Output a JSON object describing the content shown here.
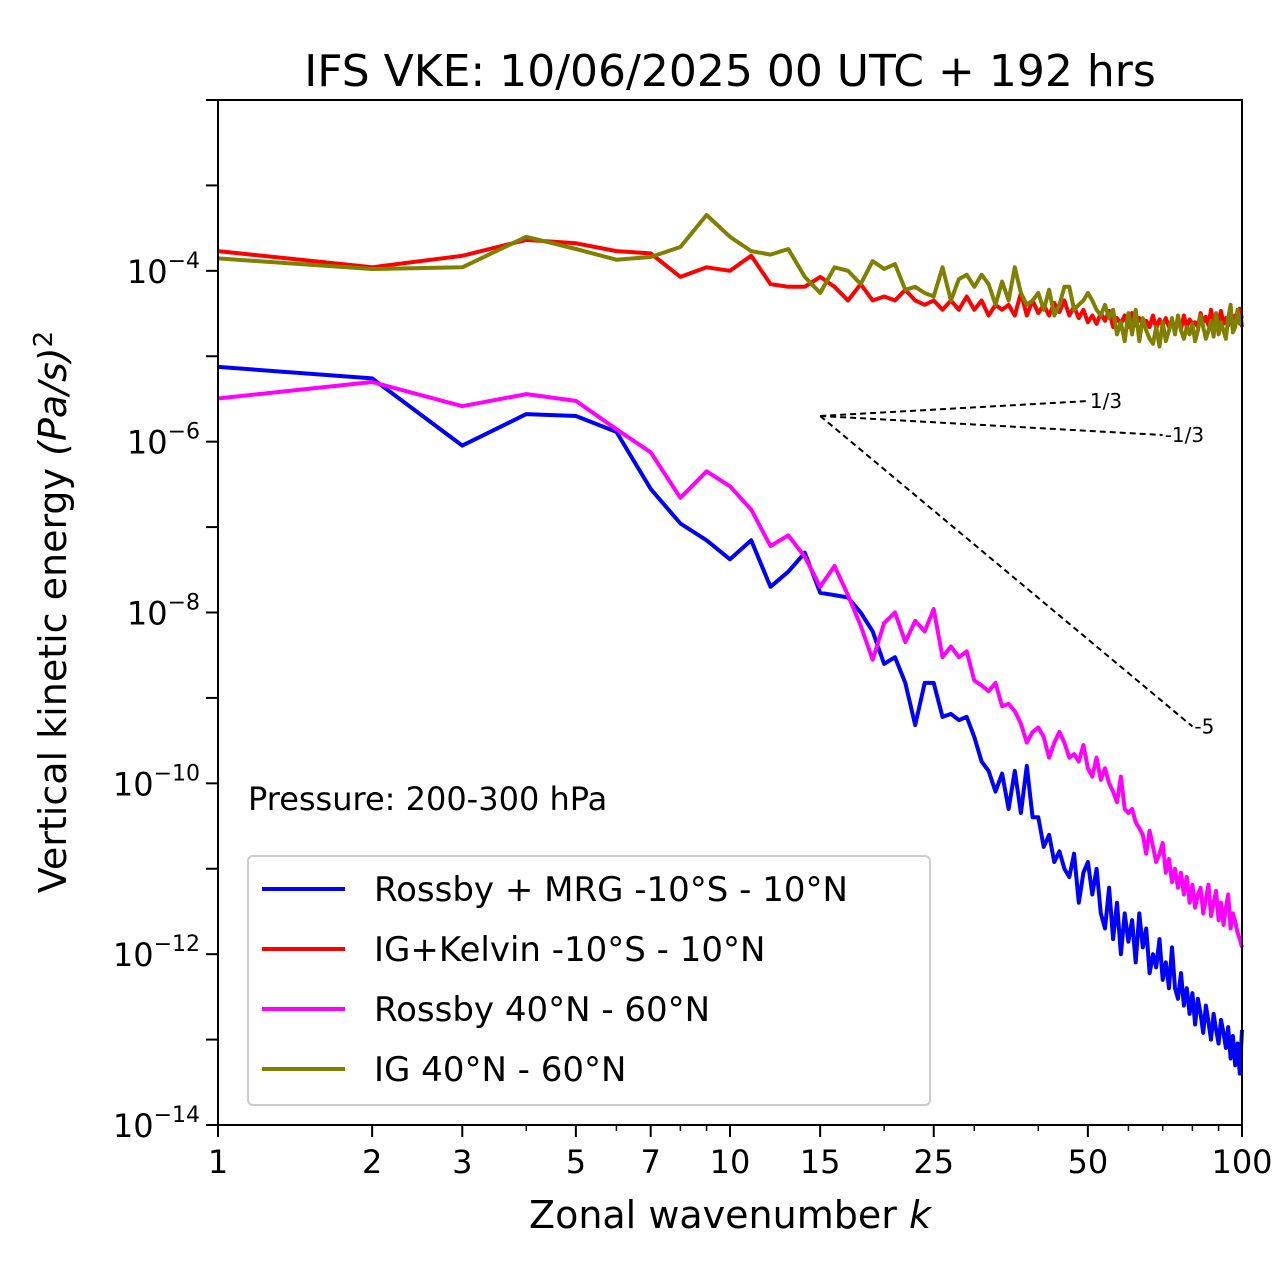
{
  "chart_data": {
    "type": "line",
    "title": "IFS VKE: 10/06/2025 00 UTC + 192 hrs",
    "xlabel": "Zonal wavenumber",
    "xlabel_var": "k",
    "ylabel": "Vertical kinetic energy",
    "ylabel_unit": "(Pa/s)",
    "ylabel_exp": "2",
    "xscale": "log",
    "yscale": "log",
    "xlim": [
      1,
      100
    ],
    "ylim": [
      1e-14,
      0.01
    ],
    "x_ticks": [
      1,
      2,
      3,
      5,
      7,
      10,
      15,
      25,
      50,
      100
    ],
    "y_ticks": [
      {
        "value": 0.0001,
        "base": "10",
        "exp": "−4"
      },
      {
        "value": 1e-06,
        "base": "10",
        "exp": "−6"
      },
      {
        "value": 1e-08,
        "base": "10",
        "exp": "−8"
      },
      {
        "value": 1e-10,
        "base": "10",
        "exp": "−10"
      },
      {
        "value": 1e-12,
        "base": "10",
        "exp": "−12"
      },
      {
        "value": 1e-14,
        "base": "10",
        "exp": "−14"
      }
    ],
    "annotation": "Pressure: 200-300 hPa",
    "legend_position": "lower-left",
    "reference_slopes": [
      {
        "label": "1/3",
        "slope": 0.3333,
        "x0": 15,
        "y0": 2e-06,
        "x1": 50
      },
      {
        "label": "-1/3",
        "slope": -0.3333,
        "x0": 15,
        "y0": 2e-06,
        "x1": 70
      },
      {
        "label": "-5",
        "slope": -5,
        "x0": 15,
        "y0": 2e-06,
        "x1": 80
      }
    ],
    "series": [
      {
        "name": "Rossby + MRG -10°S - 10°N",
        "color": "#0000ff",
        "x": [
          1,
          2,
          3,
          4,
          5,
          6,
          7,
          8,
          9,
          10,
          11,
          12,
          13,
          14,
          15,
          16,
          17,
          18,
          19,
          20,
          21,
          22,
          23,
          24,
          25,
          26,
          27,
          28,
          29,
          30,
          31,
          32,
          33,
          34,
          35,
          36,
          37,
          38,
          39,
          40,
          41,
          42,
          43,
          44,
          45,
          46,
          47,
          48,
          49,
          50,
          51,
          52,
          53,
          54,
          55,
          56,
          57,
          58,
          59,
          60,
          61,
          62,
          63,
          64,
          65,
          66,
          67,
          68,
          69,
          70,
          71,
          72,
          73,
          74,
          75,
          76,
          77,
          78,
          79,
          80,
          81,
          82,
          83,
          84,
          85,
          86,
          87,
          88,
          89,
          90,
          91,
          92,
          93,
          94,
          95,
          96,
          97,
          98,
          99,
          100
        ],
        "y": [
          7.5e-06,
          5.5e-06,
          9e-07,
          2.1e-06,
          2e-06,
          1.3e-06,
          2.8e-07,
          1.1e-07,
          7e-08,
          4.2e-08,
          7e-08,
          2e-08,
          3e-08,
          5e-08,
          1.7e-08,
          1.6e-08,
          1.5e-08,
          1e-08,
          6e-09,
          2.5e-09,
          3e-09,
          1.5e-09,
          4.8e-10,
          1.5e-09,
          1.5e-09,
          6e-10,
          6.5e-10,
          5.5e-10,
          6e-10,
          3.5e-10,
          1.8e-10,
          1.4e-10,
          8e-11,
          1.3e-10,
          5e-11,
          1.4e-10,
          4.5e-11,
          1.6e-10,
          4e-11,
          4e-11,
          1.8e-11,
          2.5e-11,
          1.2e-11,
          1.6e-11,
          1e-11,
          8e-12,
          1.5e-11,
          4e-12,
          9e-12,
          1.2e-11,
          5e-12,
          1e-11,
          3e-12,
          2e-12,
          6e-12,
          1.5e-12,
          4e-12,
          1e-12,
          3e-12,
          1.4e-12,
          2.5e-12,
          8e-13,
          3e-12,
          1.2e-12,
          2e-12,
          6e-13,
          1e-12,
          7e-13,
          1.5e-12,
          5e-13,
          8e-13,
          4e-13,
          1.2e-12,
          4e-13,
          3e-13,
          6e-13,
          2.5e-13,
          4e-13,
          2e-13,
          3.5e-13,
          1.5e-13,
          3e-13,
          2e-13,
          1.2e-13,
          2.5e-13,
          1.6e-13,
          1e-13,
          2e-13,
          1.3e-13,
          9e-14,
          1.7e-13,
          1.2e-13,
          8e-14,
          1.4e-13,
          6e-14,
          1.1e-13,
          5e-14,
          9e-14,
          4e-14,
          1.3e-13
        ]
      },
      {
        "name": "IG+Kelvin -10°S - 10°N",
        "color": "#ff0000",
        "x": [
          1,
          2,
          3,
          4,
          5,
          6,
          7,
          8,
          9,
          10,
          11,
          12,
          13,
          14,
          15,
          16,
          17,
          18,
          19,
          20,
          21,
          22,
          23,
          24,
          25,
          26,
          27,
          28,
          29,
          30,
          31,
          32,
          33,
          34,
          35,
          36,
          37,
          38,
          39,
          40,
          41,
          42,
          43,
          44,
          45,
          46,
          47,
          48,
          49,
          50,
          51,
          52,
          53,
          54,
          55,
          56,
          57,
          58,
          59,
          60,
          61,
          62,
          63,
          64,
          65,
          66,
          67,
          68,
          69,
          70,
          71,
          72,
          73,
          74,
          75,
          76,
          77,
          78,
          79,
          80,
          81,
          82,
          83,
          84,
          85,
          86,
          87,
          88,
          89,
          90,
          91,
          92,
          93,
          94,
          95,
          96,
          97,
          98,
          99,
          100
        ],
        "y": [
          0.00017,
          0.00011,
          0.00015,
          0.00023,
          0.00021,
          0.00017,
          0.00016,
          8.5e-05,
          0.00011,
          0.0001,
          0.00015,
          7e-05,
          6.5e-05,
          6.5e-05,
          8.5e-05,
          6.5e-05,
          4.5e-05,
          7e-05,
          4.5e-05,
          5e-05,
          4.5e-05,
          6e-05,
          4.5e-05,
          4e-05,
          4.5e-05,
          3.5e-05,
          4.5e-05,
          3.5e-05,
          5e-05,
          3.5e-05,
          4.5e-05,
          3e-05,
          4e-05,
          3.5e-05,
          4e-05,
          3e-05,
          5.5e-05,
          3e-05,
          4.5e-05,
          3.2e-05,
          4e-05,
          3e-05,
          4.2e-05,
          3.3e-05,
          4.5e-05,
          3e-05,
          3.8e-05,
          2.8e-05,
          3.5e-05,
          2.5e-05,
          3e-05,
          2.4e-05,
          3.2e-05,
          2.6e-05,
          3.4e-05,
          2.2e-05,
          2.8e-05,
          2.4e-05,
          3e-05,
          2.2e-05,
          3.2e-05,
          2.3e-05,
          2.8e-05,
          2.4e-05,
          2.6e-05,
          2.2e-05,
          3e-05,
          2.1e-05,
          2.7e-05,
          2.3e-05,
          2.8e-05,
          2.2e-05,
          2.5e-05,
          2.3e-05,
          2.6e-05,
          2.1e-05,
          3e-05,
          2.2e-05,
          2.7e-05,
          2.4e-05,
          2.5e-05,
          2.2e-05,
          3.2e-05,
          2.5e-05,
          2.9e-05,
          2.3e-05,
          3.5e-05,
          2.5e-05,
          3e-05,
          2.6e-05,
          3.4e-05,
          2.4e-05,
          2.8e-05,
          2.3e-05,
          3.2e-05,
          2.5e-05,
          3e-05,
          2.6e-05,
          3.6e-05,
          2.2e-05
        ]
      },
      {
        "name": "Rossby 40°N - 60°N",
        "color": "#ff00ff",
        "x": [
          1,
          2,
          3,
          4,
          5,
          6,
          7,
          8,
          9,
          10,
          11,
          12,
          13,
          14,
          15,
          16,
          17,
          18,
          19,
          20,
          21,
          22,
          23,
          24,
          25,
          26,
          27,
          28,
          29,
          30,
          31,
          32,
          33,
          34,
          35,
          36,
          37,
          38,
          39,
          40,
          41,
          42,
          43,
          44,
          45,
          46,
          47,
          48,
          49,
          50,
          51,
          52,
          53,
          54,
          55,
          56,
          57,
          58,
          59,
          60,
          61,
          62,
          63,
          64,
          65,
          66,
          67,
          68,
          69,
          70,
          71,
          72,
          73,
          74,
          75,
          76,
          77,
          78,
          79,
          80,
          81,
          82,
          83,
          84,
          85,
          86,
          87,
          88,
          89,
          90,
          91,
          92,
          93,
          94,
          95,
          96,
          97,
          98,
          99,
          100
        ],
        "y": [
          3.2e-06,
          5e-06,
          2.6e-06,
          3.6e-06,
          3e-06,
          1.4e-06,
          7.5e-07,
          2.2e-07,
          4.5e-07,
          3e-07,
          1.6e-07,
          6e-08,
          8e-08,
          4.5e-08,
          2e-08,
          3.5e-08,
          1.6e-08,
          7e-09,
          2.8e-09,
          7.5e-09,
          1e-08,
          4.5e-09,
          8e-09,
          6e-09,
          1.1e-08,
          3e-09,
          4e-09,
          3e-09,
          3.5e-09,
          1.6e-09,
          1.4e-09,
          1.2e-09,
          1.5e-09,
          8e-10,
          8.5e-10,
          7e-10,
          5e-10,
          3e-10,
          4e-10,
          4.5e-10,
          3.5e-10,
          2e-10,
          3e-10,
          4e-10,
          3e-10,
          2e-10,
          2.2e-10,
          1.8e-10,
          2.8e-10,
          1.5e-10,
          1.2e-10,
          2e-10,
          1.1e-10,
          1.5e-10,
          1e-10,
          8e-11,
          6e-11,
          1.2e-10,
          5e-11,
          4.5e-11,
          5e-11,
          3.5e-11,
          3e-11,
          2.5e-11,
          1.5e-11,
          2.8e-11,
          1.8e-11,
          1.2e-11,
          1.5e-11,
          2e-11,
          9e-12,
          1.3e-11,
          7e-12,
          1e-11,
          6e-12,
          9e-12,
          5e-12,
          8e-12,
          4e-12,
          6.5e-12,
          3.5e-12,
          5e-12,
          6e-12,
          3e-12,
          4.5e-12,
          6.5e-12,
          2.8e-12,
          4e-12,
          5.5e-12,
          2.5e-12,
          4e-12,
          2.2e-12,
          3.5e-12,
          5e-12,
          2e-12,
          3e-12,
          2.4e-12,
          1.8e-12,
          1.5e-12,
          1.2e-12
        ]
      },
      {
        "name": "IG 40°N - 60°N",
        "color": "#808000",
        "x": [
          1,
          2,
          3,
          4,
          5,
          6,
          7,
          8,
          9,
          10,
          11,
          12,
          13,
          14,
          15,
          16,
          17,
          18,
          19,
          20,
          21,
          22,
          23,
          24,
          25,
          26,
          27,
          28,
          29,
          30,
          31,
          32,
          33,
          34,
          35,
          36,
          37,
          38,
          39,
          40,
          41,
          42,
          43,
          44,
          45,
          46,
          47,
          48,
          49,
          50,
          51,
          52,
          53,
          54,
          55,
          56,
          57,
          58,
          59,
          60,
          61,
          62,
          63,
          64,
          65,
          66,
          67,
          68,
          69,
          70,
          71,
          72,
          73,
          74,
          75,
          76,
          77,
          78,
          79,
          80,
          81,
          82,
          83,
          84,
          85,
          86,
          87,
          88,
          89,
          90,
          91,
          92,
          93,
          94,
          95,
          96,
          97,
          98,
          99,
          100
        ],
        "y": [
          0.00014,
          0.000105,
          0.00011,
          0.00025,
          0.00018,
          0.000135,
          0.000145,
          0.00019,
          0.00045,
          0.00025,
          0.00017,
          0.000155,
          0.00018,
          8.5e-05,
          5.5e-05,
          0.00011,
          0.0001,
          7e-05,
          0.00013,
          0.000105,
          0.00012,
          6e-05,
          6.5e-05,
          5.5e-05,
          5e-05,
          0.00011,
          4.5e-05,
          8e-05,
          9e-05,
          6.5e-05,
          9e-05,
          7e-05,
          4e-05,
          7.5e-05,
          4.5e-05,
          0.00011,
          5.5e-05,
          4e-05,
          4.5e-05,
          5.5e-05,
          3.5e-05,
          6e-05,
          3e-05,
          4e-05,
          6.5e-05,
          6.5e-05,
          3.5e-05,
          4e-05,
          4.5e-05,
          5.5e-05,
          4.5e-05,
          3.5e-05,
          3e-05,
          4e-05,
          2.8e-05,
          3.5e-05,
          1.8e-05,
          2.5e-05,
          1.5e-05,
          3.2e-05,
          1.8e-05,
          3.5e-05,
          1.5e-05,
          2.8e-05,
          2e-05,
          1.6e-05,
          1.4e-05,
          2.2e-05,
          1.3e-05,
          2.5e-05,
          1.5e-05,
          2e-05,
          2.8e-05,
          1.8e-05,
          3e-05,
          2e-05,
          1.6e-05,
          2.2e-05,
          1.8e-05,
          2.4e-05,
          1.5e-05,
          2e-05,
          3e-05,
          2.2e-05,
          1.6e-05,
          2e-05,
          2.6e-05,
          1.7e-05,
          3.2e-05,
          1.8e-05,
          2.5e-05,
          2e-05,
          1.6e-05,
          2.8e-05,
          4e-05,
          1.9e-05,
          2.2e-05,
          3.5e-05,
          2.4e-05,
          3e-05
        ]
      }
    ]
  }
}
